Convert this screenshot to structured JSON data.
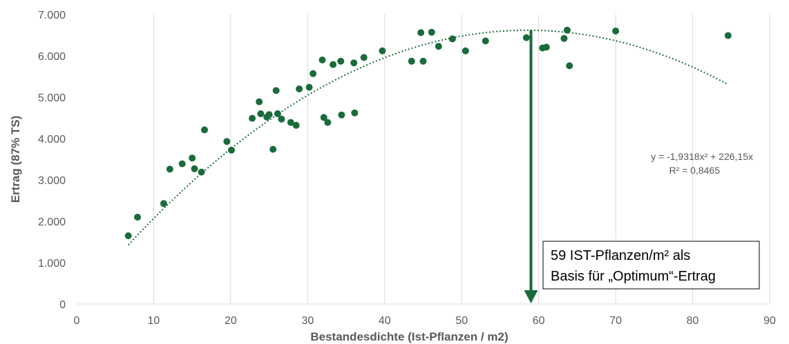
{
  "chart_data": {
    "type": "scatter",
    "xlabel": "Bestandesdichte (Ist-Pflanzen / m2)",
    "ylabel": "Ertrag (87% TS)",
    "xlim": [
      0,
      90
    ],
    "ylim": [
      0,
      7000
    ],
    "x_ticks": [
      0,
      10,
      20,
      30,
      40,
      50,
      60,
      70,
      80,
      90
    ],
    "x_tick_labels": [
      "0",
      "10",
      "20",
      "30",
      "40",
      "50",
      "60",
      "70",
      "80",
      "90"
    ],
    "y_ticks": [
      0,
      1000,
      2000,
      3000,
      4000,
      5000,
      6000,
      7000
    ],
    "y_tick_labels": [
      "0",
      "1.000",
      "2.000",
      "3.000",
      "4.000",
      "5.000",
      "6.000",
      "7.000"
    ],
    "grid": "vertical",
    "series": [
      {
        "points": [
          [
            6.7,
            1650
          ],
          [
            7.9,
            2100
          ],
          [
            11.3,
            2430
          ],
          [
            12.1,
            3260
          ],
          [
            13.7,
            3390
          ],
          [
            15.0,
            3530
          ],
          [
            15.3,
            3270
          ],
          [
            16.2,
            3190
          ],
          [
            16.6,
            4210
          ],
          [
            19.5,
            3930
          ],
          [
            20.1,
            3720
          ],
          [
            22.8,
            4490
          ],
          [
            23.7,
            4890
          ],
          [
            23.9,
            4600
          ],
          [
            24.7,
            4520
          ],
          [
            25.0,
            4580
          ],
          [
            25.5,
            3740
          ],
          [
            25.9,
            5160
          ],
          [
            26.1,
            4600
          ],
          [
            26.6,
            4470
          ],
          [
            27.8,
            4390
          ],
          [
            28.5,
            4320
          ],
          [
            28.9,
            5200
          ],
          [
            30.2,
            5240
          ],
          [
            30.7,
            5570
          ],
          [
            31.9,
            5900
          ],
          [
            32.1,
            4510
          ],
          [
            32.6,
            4390
          ],
          [
            33.3,
            5790
          ],
          [
            34.3,
            5870
          ],
          [
            34.4,
            4570
          ],
          [
            36.0,
            5830
          ],
          [
            36.1,
            4620
          ],
          [
            37.3,
            5960
          ],
          [
            39.7,
            6120
          ],
          [
            43.5,
            5870
          ],
          [
            44.7,
            6560
          ],
          [
            45.0,
            5870
          ],
          [
            46.1,
            6570
          ],
          [
            47.0,
            6230
          ],
          [
            48.8,
            6410
          ],
          [
            50.5,
            6120
          ],
          [
            53.1,
            6360
          ],
          [
            58.4,
            6440
          ],
          [
            60.5,
            6190
          ],
          [
            61.0,
            6210
          ],
          [
            63.3,
            6420
          ],
          [
            63.7,
            6620
          ],
          [
            64.0,
            5760
          ],
          [
            70.0,
            6600
          ],
          [
            84.6,
            6490
          ]
        ],
        "color": "#1a6b3a"
      }
    ],
    "trendline": {
      "a": -1.9318,
      "b": 226.15,
      "x_range": [
        6.7,
        84.6
      ],
      "equation": "y = -1,9318x² + 226,15x",
      "r_squared": "R² = 0,8465",
      "color": "#1a6b3a",
      "style": "dotted"
    },
    "marker_line": {
      "x": 59,
      "color": "#1a6b3a"
    },
    "annotation": {
      "lines": [
        "59 IST-Pflanzen/m² als",
        "Basis für „Optimum“-Ertrag"
      ]
    }
  }
}
